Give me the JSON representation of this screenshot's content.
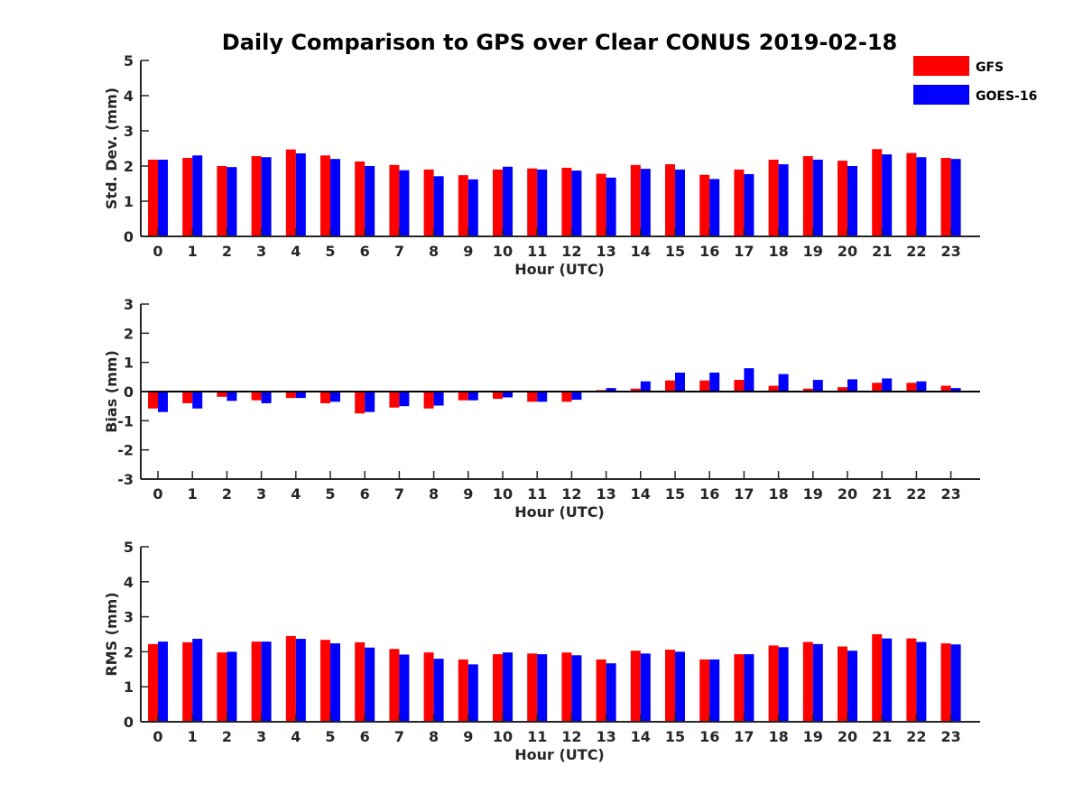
{
  "chart_data": {
    "type": "bar",
    "title": "Daily Comparison to GPS over Clear CONUS 2019-02-18",
    "legend": {
      "placement": "top-right",
      "entries": [
        {
          "name": "GFS",
          "color": "#ff0000"
        },
        {
          "name": "GOES-16",
          "color": "#0000ff"
        }
      ]
    },
    "categories": [
      "0",
      "1",
      "2",
      "3",
      "4",
      "5",
      "6",
      "7",
      "8",
      "9",
      "10",
      "11",
      "12",
      "13",
      "14",
      "15",
      "16",
      "17",
      "18",
      "19",
      "20",
      "21",
      "22",
      "23"
    ],
    "panels": [
      {
        "id": "stddev",
        "ylabel": "Std. Dev. (mm)",
        "xlabel": "Hour (UTC)",
        "ylim": [
          0,
          5
        ],
        "yticks": [
          0,
          1,
          2,
          3,
          4,
          5
        ],
        "series": [
          {
            "name": "GFS",
            "values": [
              2.18,
              2.23,
              2.0,
              2.28,
              2.47,
              2.3,
              2.13,
              2.03,
              1.9,
              1.74,
              1.9,
              1.93,
              1.95,
              1.78,
              2.03,
              2.05,
              1.75,
              1.9,
              2.18,
              2.28,
              2.15,
              2.48,
              2.37,
              2.23
            ]
          },
          {
            "name": "GOES-16",
            "values": [
              2.18,
              2.3,
              1.97,
              2.25,
              2.36,
              2.2,
              2.0,
              1.88,
              1.71,
              1.62,
              1.98,
              1.9,
              1.87,
              1.67,
              1.92,
              1.9,
              1.63,
              1.77,
              2.05,
              2.18,
              2.0,
              2.33,
              2.25,
              2.2
            ]
          }
        ]
      },
      {
        "id": "bias",
        "ylabel": "Bias (mm)",
        "xlabel": "Hour (UTC)",
        "ylim": [
          -3,
          3
        ],
        "yticks": [
          -3,
          -2,
          -1,
          0,
          1,
          2,
          3
        ],
        "series": [
          {
            "name": "GFS",
            "values": [
              -0.58,
              -0.4,
              -0.18,
              -0.3,
              -0.22,
              -0.4,
              -0.75,
              -0.55,
              -0.58,
              -0.3,
              -0.25,
              -0.35,
              -0.35,
              0.05,
              0.1,
              0.38,
              0.38,
              0.4,
              0.2,
              0.1,
              0.15,
              0.3,
              0.3,
              0.2
            ]
          },
          {
            "name": "GOES-16",
            "values": [
              -0.7,
              -0.58,
              -0.32,
              -0.4,
              -0.22,
              -0.35,
              -0.7,
              -0.5,
              -0.48,
              -0.3,
              -0.2,
              -0.35,
              -0.28,
              0.12,
              0.35,
              0.65,
              0.65,
              0.8,
              0.6,
              0.4,
              0.42,
              0.45,
              0.35,
              0.12
            ]
          }
        ]
      },
      {
        "id": "rms",
        "ylabel": "RMS (mm)",
        "xlabel": "Hour (UTC)",
        "ylim": [
          0,
          5
        ],
        "yticks": [
          0,
          1,
          2,
          3,
          4,
          5
        ],
        "series": [
          {
            "name": "GFS",
            "values": [
              2.22,
              2.27,
              1.98,
              2.29,
              2.45,
              2.34,
              2.27,
              2.08,
              1.98,
              1.78,
              1.93,
              1.95,
              1.98,
              1.78,
              2.03,
              2.06,
              1.78,
              1.93,
              2.18,
              2.28,
              2.15,
              2.5,
              2.38,
              2.24
            ]
          },
          {
            "name": "GOES-16",
            "values": [
              2.29,
              2.37,
              2.0,
              2.29,
              2.37,
              2.24,
              2.12,
              1.92,
              1.8,
              1.64,
              1.98,
              1.93,
              1.9,
              1.67,
              1.95,
              2.0,
              1.78,
              1.93,
              2.13,
              2.22,
              2.03,
              2.38,
              2.28,
              2.21
            ]
          }
        ]
      }
    ]
  }
}
